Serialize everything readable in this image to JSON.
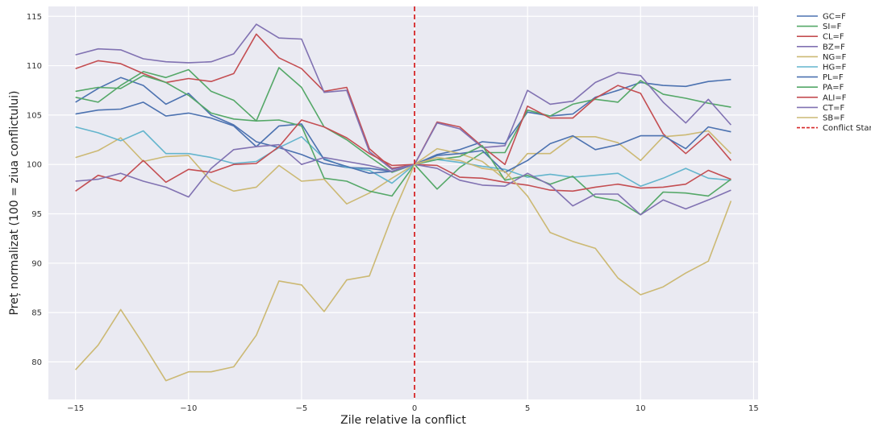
{
  "chart_data": {
    "type": "line",
    "title": "",
    "xlabel": "Zile relative la conflict",
    "ylabel": "Preț normalizat (100 = ziua conflictului)",
    "xlim": [
      -16.2,
      15.2
    ],
    "ylim": [
      76.2,
      116
    ],
    "xticks": [
      -15,
      -10,
      -5,
      0,
      5,
      10,
      15
    ],
    "yticks": [
      80,
      85,
      90,
      95,
      100,
      105,
      110,
      115
    ],
    "grid": true,
    "legend_position": "outside-right",
    "x": [
      -15,
      -14,
      -13,
      -12,
      -11,
      -10,
      -9,
      -8,
      -7,
      -6,
      -5,
      -4,
      -3,
      -2,
      -1,
      0,
      1,
      2,
      3,
      4,
      5,
      6,
      7,
      8,
      9,
      10,
      11,
      12,
      13,
      14
    ],
    "series": [
      {
        "name": "GC=F",
        "color": "#4c72b0",
        "values": [
          106.3,
          107.7,
          108.8,
          108.0,
          106.1,
          107.2,
          105.0,
          104.0,
          102.3,
          101.7,
          101.0,
          100.1,
          99.7,
          99.6,
          99.3,
          100.0,
          101.0,
          101.5,
          102.3,
          102.1,
          105.3,
          104.9,
          105.1,
          106.8,
          107.5,
          108.3,
          108.0,
          107.9,
          108.4,
          108.6
        ]
      },
      {
        "name": "SI=F",
        "color": "#55a868",
        "values": [
          106.8,
          106.3,
          108.0,
          109.4,
          108.8,
          109.6,
          107.4,
          106.5,
          104.4,
          109.8,
          107.8,
          103.8,
          102.5,
          100.8,
          99.2,
          100.0,
          97.5,
          99.7,
          101.2,
          101.2,
          105.5,
          104.9,
          106.1,
          106.6,
          106.3,
          108.5,
          107.1,
          106.7,
          106.2,
          105.8
        ]
      },
      {
        "name": "CL=F",
        "color": "#c44e52",
        "values": [
          109.7,
          110.5,
          110.2,
          109.2,
          108.3,
          108.7,
          108.4,
          109.2,
          113.2,
          110.8,
          109.7,
          107.4,
          107.8,
          101.6,
          99.6,
          100.0,
          104.3,
          103.8,
          101.8,
          100.0,
          105.9,
          104.7,
          104.7,
          106.7,
          108.0,
          107.2,
          103.1,
          101.1,
          103.1,
          100.4
        ]
      },
      {
        "name": "BZ=F",
        "color": "#8172b2",
        "values": [
          111.1,
          111.7,
          111.6,
          110.7,
          110.4,
          110.3,
          110.4,
          111.2,
          114.2,
          112.8,
          112.7,
          107.3,
          107.5,
          101.3,
          99.5,
          100.0,
          104.2,
          103.6,
          101.7,
          101.9,
          107.5,
          106.1,
          106.4,
          108.3,
          109.3,
          109.0,
          106.3,
          104.2,
          106.6,
          104.0
        ]
      },
      {
        "name": "NG=F",
        "color": "#ccb974",
        "values": [
          100.7,
          101.4,
          102.7,
          100.3,
          100.8,
          100.9,
          98.3,
          97.3,
          97.7,
          99.9,
          98.3,
          98.5,
          96.0,
          97.1,
          98.6,
          100.0,
          101.6,
          101.1,
          100.3,
          98.5,
          101.1,
          101.1,
          102.8,
          102.8,
          102.2,
          100.4,
          102.8,
          103.0,
          103.4,
          101.1
        ]
      },
      {
        "name": "HG=F",
        "color": "#64b5cd",
        "values": [
          103.8,
          103.2,
          102.4,
          103.4,
          101.1,
          101.1,
          100.7,
          100.1,
          100.3,
          101.7,
          102.8,
          100.6,
          99.7,
          99.4,
          98.1,
          100.0,
          100.5,
          100.2,
          99.8,
          99.5,
          98.7,
          99.0,
          98.7,
          98.9,
          99.1,
          97.8,
          98.6,
          99.6,
          98.6,
          98.4
        ]
      },
      {
        "name": "PL=F",
        "color": "#4c72b0",
        "values": [
          105.1,
          105.5,
          105.6,
          106.3,
          104.9,
          105.2,
          104.7,
          103.9,
          101.8,
          103.9,
          104.1,
          100.5,
          99.8,
          99.1,
          99.3,
          100.0,
          100.9,
          101.1,
          101.4,
          99.2,
          100.4,
          102.1,
          102.9,
          101.5,
          102.0,
          102.9,
          102.9,
          101.6,
          103.8,
          103.3
        ]
      },
      {
        "name": "PA=F",
        "color": "#55a868",
        "values": [
          107.4,
          107.8,
          107.7,
          109.0,
          108.3,
          107.0,
          105.2,
          104.6,
          104.4,
          104.5,
          103.9,
          98.6,
          98.3,
          97.3,
          96.8,
          100.0,
          100.5,
          100.8,
          101.9,
          98.4,
          98.9,
          98.0,
          98.8,
          96.7,
          96.3,
          94.9,
          97.2,
          97.1,
          96.8,
          98.5
        ]
      },
      {
        "name": "ALI=F",
        "color": "#c44e52",
        "values": [
          97.3,
          98.9,
          98.3,
          100.4,
          98.2,
          99.5,
          99.2,
          100.0,
          100.1,
          101.8,
          104.5,
          103.8,
          102.7,
          101.1,
          99.9,
          100.0,
          99.9,
          98.7,
          98.6,
          98.2,
          97.9,
          97.4,
          97.3,
          97.7,
          98.0,
          97.6,
          97.7,
          98.0,
          99.4,
          98.5
        ]
      },
      {
        "name": "CT=F",
        "color": "#8172b2",
        "values": [
          98.3,
          98.5,
          99.1,
          98.3,
          97.7,
          96.7,
          99.6,
          101.5,
          101.8,
          102.0,
          100.0,
          100.7,
          100.3,
          99.9,
          99.3,
          100.0,
          99.6,
          98.4,
          97.9,
          97.8,
          99.1,
          97.9,
          95.8,
          97.0,
          97.0,
          94.9,
          96.4,
          95.5,
          96.4,
          97.4
        ]
      },
      {
        "name": "SB=F",
        "color": "#ccb974",
        "values": [
          79.2,
          81.7,
          85.3,
          81.8,
          78.1,
          79.0,
          79.0,
          79.5,
          82.7,
          88.2,
          87.8,
          85.1,
          88.3,
          88.7,
          94.7,
          100.0,
          100.7,
          100.4,
          99.6,
          99.3,
          96.8,
          93.1,
          92.2,
          91.5,
          88.5,
          86.8,
          87.6,
          89.0,
          90.2,
          96.3
        ]
      }
    ],
    "annotation": {
      "name": "Conflict Start",
      "x": 0,
      "color": "#d62728",
      "style": "dashed"
    }
  }
}
